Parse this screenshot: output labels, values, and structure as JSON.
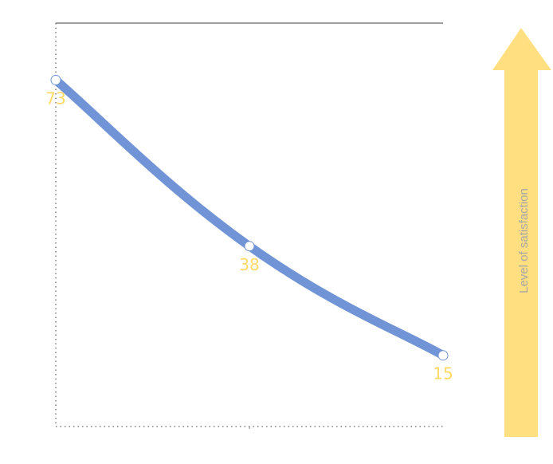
{
  "chart_data": {
    "type": "line",
    "title": "",
    "xlabel": "",
    "ylabel": "",
    "x": [
      0,
      1,
      2
    ],
    "ylim": [
      0,
      85
    ],
    "grid": false,
    "series": [
      {
        "values": [
          73,
          38,
          15
        ],
        "color": "#7094d6",
        "marker_color": "#ffffff"
      }
    ],
    "data_label_color": "#ffd966",
    "side_arrow": {
      "label": "Level of satisfaction",
      "color": "#ffdf80",
      "direction": "up"
    }
  }
}
